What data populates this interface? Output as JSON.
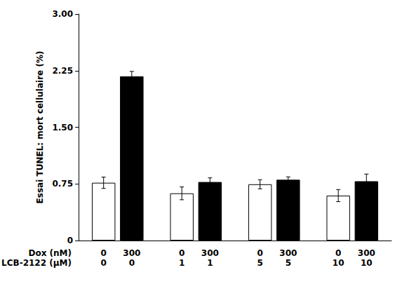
{
  "chart_data": {
    "type": "bar",
    "ylabel": "Essai TUNEL: mort cellulaire (%)",
    "categories": [
      null,
      null,
      null,
      null
    ],
    "row_headers": [
      "Dox (nM)",
      "LCB-2122 (μM)"
    ],
    "series": [
      {
        "color": "#ffffff",
        "edge_color": "#000000",
        "values": [
          0.765,
          0.625,
          0.745,
          0.595
        ],
        "errors": [
          0.075,
          0.085,
          0.06,
          0.08
        ],
        "row_labels": [
          [
            "0",
            "0"
          ],
          [
            "0",
            "1"
          ],
          [
            "0",
            "5"
          ],
          [
            "0",
            "10"
          ]
        ]
      },
      {
        "color": "#000000",
        "edge_color": "#000000",
        "values": [
          2.175,
          0.775,
          0.805,
          0.785
        ],
        "errors": [
          0.065,
          0.055,
          0.038,
          0.095
        ],
        "row_labels": [
          [
            "300",
            "0"
          ],
          [
            "300",
            "1"
          ],
          [
            "300",
            "5"
          ],
          [
            "300",
            "10"
          ]
        ]
      }
    ],
    "ylim": [
      0,
      3.0
    ],
    "yticks": [
      0,
      0.75,
      {
        "value": 1.5,
        "label": "1.50"
      },
      2.25,
      {
        "value": 3,
        "label": "3.00"
      }
    ],
    "grid": false
  }
}
